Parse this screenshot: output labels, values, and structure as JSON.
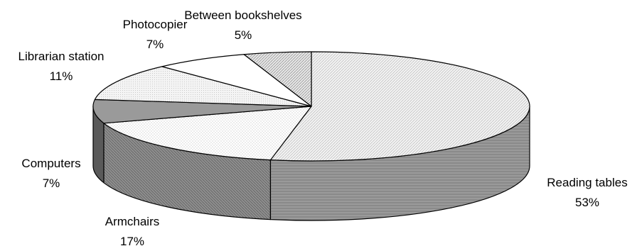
{
  "chart_data": {
    "type": "pie",
    "style": "3d-exploded-tilted",
    "title": "",
    "categories": [
      "Reading tables",
      "Armchairs",
      "Computers",
      "Librarian station",
      "Photocopier",
      "Between bookshelves"
    ],
    "values": [
      53,
      17,
      7,
      11,
      7,
      5
    ],
    "value_labels": [
      "53%",
      "17%",
      "7%",
      "11%",
      "7%",
      "5%"
    ],
    "legend": "none",
    "label_placement": "outside"
  }
}
